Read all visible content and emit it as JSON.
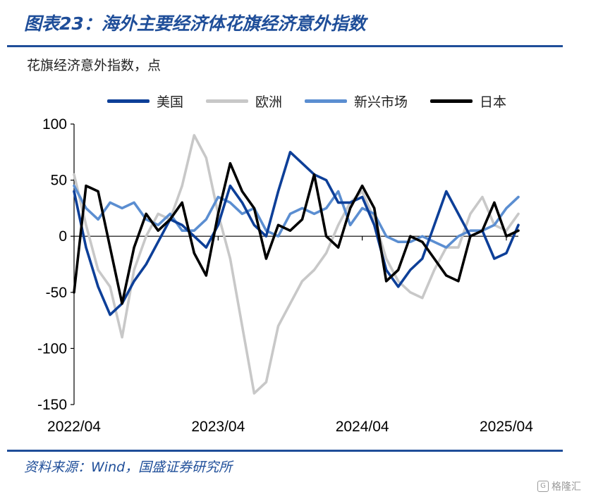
{
  "header": {
    "title": "图表23：海外主要经济体花旗经济意外指数"
  },
  "footer": {
    "source": "资料来源：Wind，国盛证券研究所",
    "watermark": "格隆汇"
  },
  "colors": {
    "accent": "#1f4e99"
  },
  "chart_data": {
    "type": "line",
    "title": "图表23：海外主要经济体花旗经济意外指数",
    "ylabel": "花旗经济意外指数，点",
    "xlabel": "",
    "ylim": [
      -150,
      100
    ],
    "yticks": [
      100,
      50,
      0,
      -50,
      -100,
      -150
    ],
    "xticks": [
      "2022/04",
      "2023/04",
      "2024/04",
      "2025/04"
    ],
    "xlim": [
      "2022/04",
      "2025/05"
    ],
    "grid": false,
    "legend": "top",
    "series": [
      {
        "name": "美国",
        "color": "#0d3f98",
        "points": [
          [
            "2022/04",
            40
          ],
          [
            "2022/05",
            -10
          ],
          [
            "2022/06",
            -45
          ],
          [
            "2022/07",
            -70
          ],
          [
            "2022/08",
            -60
          ],
          [
            "2022/09",
            -40
          ],
          [
            "2022/10",
            -25
          ],
          [
            "2022/11",
            -5
          ],
          [
            "2022/12",
            15
          ],
          [
            "2023/01",
            10
          ],
          [
            "2023/02",
            0
          ],
          [
            "2023/03",
            -10
          ],
          [
            "2023/04",
            10
          ],
          [
            "2023/05",
            45
          ],
          [
            "2023/06",
            30
          ],
          [
            "2023/07",
            10
          ],
          [
            "2023/08",
            0
          ],
          [
            "2023/09",
            40
          ],
          [
            "2023/10",
            75
          ],
          [
            "2023/11",
            65
          ],
          [
            "2023/12",
            55
          ],
          [
            "2024/01",
            50
          ],
          [
            "2024/02",
            30
          ],
          [
            "2024/03",
            30
          ],
          [
            "2024/04",
            35
          ],
          [
            "2024/05",
            10
          ],
          [
            "2024/06",
            -30
          ],
          [
            "2024/07",
            -45
          ],
          [
            "2024/08",
            -30
          ],
          [
            "2024/09",
            -20
          ],
          [
            "2024/10",
            10
          ],
          [
            "2024/11",
            40
          ],
          [
            "2024/12",
            20
          ],
          [
            "2025/01",
            0
          ],
          [
            "2025/02",
            5
          ],
          [
            "2025/03",
            -20
          ],
          [
            "2025/04",
            -15
          ],
          [
            "2025/05",
            10
          ]
        ]
      },
      {
        "name": "欧洲",
        "color": "#c8c8c8",
        "points": [
          [
            "2022/04",
            55
          ],
          [
            "2022/05",
            10
          ],
          [
            "2022/06",
            -30
          ],
          [
            "2022/07",
            -45
          ],
          [
            "2022/08",
            -90
          ],
          [
            "2022/09",
            -30
          ],
          [
            "2022/10",
            0
          ],
          [
            "2022/11",
            20
          ],
          [
            "2022/12",
            15
          ],
          [
            "2023/01",
            45
          ],
          [
            "2023/02",
            90
          ],
          [
            "2023/03",
            70
          ],
          [
            "2023/04",
            20
          ],
          [
            "2023/05",
            -20
          ],
          [
            "2023/06",
            -80
          ],
          [
            "2023/07",
            -140
          ],
          [
            "2023/08",
            -130
          ],
          [
            "2023/09",
            -80
          ],
          [
            "2023/10",
            -60
          ],
          [
            "2023/11",
            -40
          ],
          [
            "2023/12",
            -30
          ],
          [
            "2024/01",
            -15
          ],
          [
            "2024/02",
            10
          ],
          [
            "2024/03",
            30
          ],
          [
            "2024/04",
            40
          ],
          [
            "2024/05",
            15
          ],
          [
            "2024/06",
            -20
          ],
          [
            "2024/07",
            -40
          ],
          [
            "2024/08",
            -50
          ],
          [
            "2024/09",
            -55
          ],
          [
            "2024/10",
            -30
          ],
          [
            "2024/11",
            -10
          ],
          [
            "2024/12",
            -10
          ],
          [
            "2025/01",
            20
          ],
          [
            "2025/02",
            35
          ],
          [
            "2025/03",
            10
          ],
          [
            "2025/04",
            5
          ],
          [
            "2025/05",
            20
          ]
        ]
      },
      {
        "name": "新兴市场",
        "color": "#5b8ed1",
        "points": [
          [
            "2022/04",
            45
          ],
          [
            "2022/05",
            25
          ],
          [
            "2022/06",
            15
          ],
          [
            "2022/07",
            30
          ],
          [
            "2022/08",
            25
          ],
          [
            "2022/09",
            30
          ],
          [
            "2022/10",
            15
          ],
          [
            "2022/11",
            10
          ],
          [
            "2022/12",
            20
          ],
          [
            "2023/01",
            5
          ],
          [
            "2023/02",
            5
          ],
          [
            "2023/03",
            15
          ],
          [
            "2023/04",
            35
          ],
          [
            "2023/05",
            30
          ],
          [
            "2023/06",
            20
          ],
          [
            "2023/07",
            25
          ],
          [
            "2023/08",
            5
          ],
          [
            "2023/09",
            0
          ],
          [
            "2023/10",
            20
          ],
          [
            "2023/11",
            25
          ],
          [
            "2023/12",
            20
          ],
          [
            "2024/01",
            25
          ],
          [
            "2024/02",
            40
          ],
          [
            "2024/03",
            10
          ],
          [
            "2024/04",
            25
          ],
          [
            "2024/05",
            20
          ],
          [
            "2024/06",
            0
          ],
          [
            "2024/07",
            -5
          ],
          [
            "2024/08",
            -5
          ],
          [
            "2024/09",
            0
          ],
          [
            "2024/10",
            -5
          ],
          [
            "2024/11",
            -10
          ],
          [
            "2024/12",
            0
          ],
          [
            "2025/01",
            5
          ],
          [
            "2025/02",
            5
          ],
          [
            "2025/03",
            10
          ],
          [
            "2025/04",
            25
          ],
          [
            "2025/05",
            35
          ]
        ]
      },
      {
        "name": "日本",
        "color": "#000000",
        "points": [
          [
            "2022/04",
            -50
          ],
          [
            "2022/05",
            45
          ],
          [
            "2022/06",
            40
          ],
          [
            "2022/07",
            -10
          ],
          [
            "2022/08",
            -60
          ],
          [
            "2022/09",
            -10
          ],
          [
            "2022/10",
            20
          ],
          [
            "2022/11",
            5
          ],
          [
            "2022/12",
            15
          ],
          [
            "2023/01",
            30
          ],
          [
            "2023/02",
            -15
          ],
          [
            "2023/03",
            -35
          ],
          [
            "2023/04",
            20
          ],
          [
            "2023/05",
            65
          ],
          [
            "2023/06",
            40
          ],
          [
            "2023/07",
            25
          ],
          [
            "2023/08",
            -20
          ],
          [
            "2023/09",
            10
          ],
          [
            "2023/10",
            5
          ],
          [
            "2023/11",
            15
          ],
          [
            "2023/12",
            55
          ],
          [
            "2024/01",
            0
          ],
          [
            "2024/02",
            -10
          ],
          [
            "2024/03",
            25
          ],
          [
            "2024/04",
            45
          ],
          [
            "2024/05",
            25
          ],
          [
            "2024/06",
            -40
          ],
          [
            "2024/07",
            -30
          ],
          [
            "2024/08",
            0
          ],
          [
            "2024/09",
            -5
          ],
          [
            "2024/10",
            -20
          ],
          [
            "2024/11",
            -35
          ],
          [
            "2024/12",
            -40
          ],
          [
            "2025/01",
            0
          ],
          [
            "2025/02",
            5
          ],
          [
            "2025/03",
            30
          ],
          [
            "2025/04",
            0
          ],
          [
            "2025/05",
            5
          ]
        ]
      }
    ]
  }
}
